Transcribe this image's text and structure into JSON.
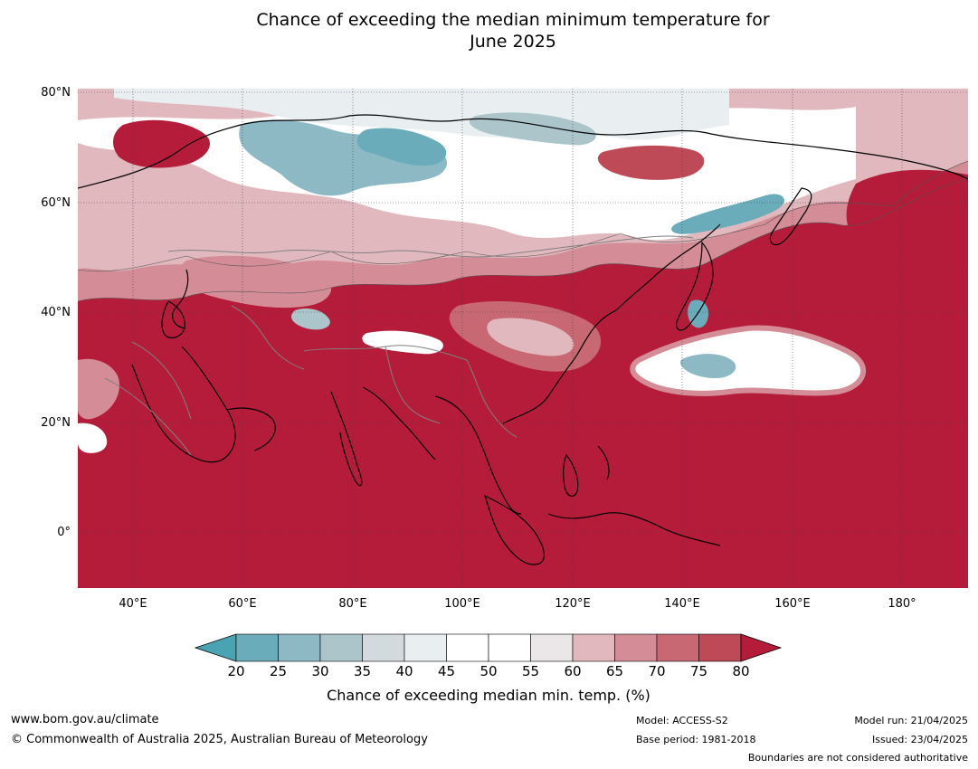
{
  "title": {
    "line1": "Chance of exceeding the median minimum temperature for",
    "line2": "June 2025"
  },
  "map": {
    "lat_labels": [
      "80°N",
      "60°N",
      "40°N",
      "20°N",
      "0°"
    ],
    "lon_labels": [
      "40°E",
      "60°E",
      "80°E",
      "100°E",
      "120°E",
      "140°E",
      "160°E",
      "180°"
    ],
    "extent": {
      "lon": [
        30,
        192
      ],
      "lat": [
        -10,
        80
      ]
    }
  },
  "colorbar": {
    "ticks": [
      "20",
      "25",
      "30",
      "35",
      "40",
      "45",
      "50",
      "55",
      "60",
      "65",
      "70",
      "75",
      "80"
    ],
    "colors": [
      "#4aa3b3",
      "#6aacba",
      "#8cb9c4",
      "#abc5cb",
      "#d2dadd",
      "#e9eff1",
      "#ffffff",
      "#ffffff",
      "#ebe6e8",
      "#e0b8be",
      "#d48d97",
      "#c76872",
      "#be4a57",
      "#b41c3a"
    ],
    "label": "Chance of exceeding median min. temp. (%)"
  },
  "footer": {
    "website": "www.bom.gov.au/climate",
    "copyright": "© Commonwealth of Australia 2025, Australian Bureau of Meteorology",
    "model": "Model: ACCESS-S2",
    "base_period": "Base period: 1981-2018",
    "model_run": "Model run: 21/04/2025",
    "issued": "Issued: 23/04/2025",
    "disclaimer": "Boundaries are not considered authoritative"
  }
}
